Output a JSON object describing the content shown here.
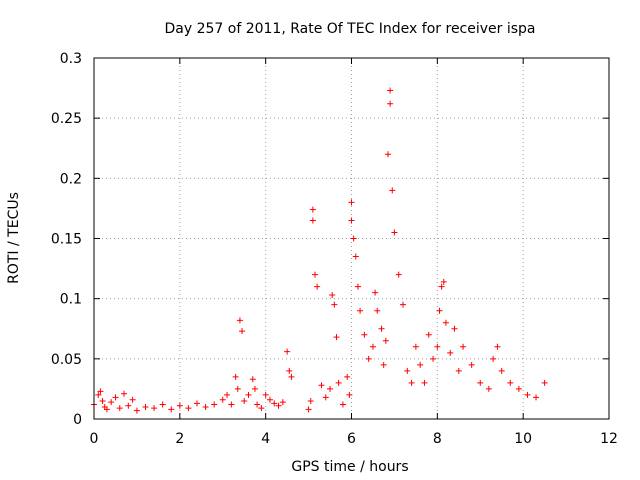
{
  "chart_data": {
    "type": "scatter",
    "title": "Day 257 of 2011, Rate Of TEC Index for receiver ispa",
    "xlabel": "GPS time / hours",
    "ylabel": "ROTI / TECUs",
    "xlim": [
      0,
      12
    ],
    "ylim": [
      0,
      0.3
    ],
    "xticks": [
      0,
      2,
      4,
      6,
      8,
      10,
      12
    ],
    "yticks": [
      0,
      0.05,
      0.1,
      0.15,
      0.2,
      0.25,
      0.3
    ],
    "xtick_labels": [
      "0",
      "2",
      "4",
      "6",
      "8",
      "10",
      "12"
    ],
    "ytick_labels": [
      "0",
      "0.05",
      "0.1",
      "0.15",
      "0.2",
      "0.25",
      "0.3"
    ],
    "grid": true,
    "marker": "plus",
    "color": "#ff0000",
    "series": [
      {
        "x": [
          0.0,
          0.1,
          0.15,
          0.2,
          0.25,
          0.3,
          0.4,
          0.5,
          0.6,
          0.7,
          0.8,
          0.9,
          1.0,
          1.2,
          1.4,
          1.6,
          1.8,
          2.0,
          2.2,
          2.4,
          2.6,
          2.8,
          3.0,
          3.1,
          3.2,
          3.3,
          3.35,
          3.4,
          3.45,
          3.5,
          3.6,
          3.7,
          3.75,
          3.8,
          3.9,
          4.0,
          4.1,
          4.2,
          4.3,
          4.4,
          4.5,
          4.55,
          4.6,
          5.0,
          5.05,
          5.1,
          5.1,
          5.15,
          5.2,
          5.3,
          5.4,
          5.5,
          5.55,
          5.6,
          5.65,
          5.7,
          5.8,
          5.9,
          5.95,
          6.0,
          6.0,
          6.05,
          6.1,
          6.15,
          6.2,
          6.3,
          6.4,
          6.5,
          6.55,
          6.6,
          6.7,
          6.75,
          6.8,
          6.85,
          6.9,
          6.9,
          6.95,
          7.0,
          7.1,
          7.2,
          7.3,
          7.4,
          7.5,
          7.6,
          7.7,
          7.8,
          7.9,
          8.0,
          8.05,
          8.1,
          8.15,
          8.2,
          8.3,
          8.4,
          8.5,
          8.6,
          8.8,
          9.0,
          9.2,
          9.3,
          9.4,
          9.5,
          9.7,
          9.9,
          10.1,
          10.3,
          10.5
        ],
        "y": [
          0.012,
          0.02,
          0.023,
          0.015,
          0.01,
          0.008,
          0.014,
          0.018,
          0.009,
          0.021,
          0.011,
          0.016,
          0.007,
          0.01,
          0.009,
          0.012,
          0.008,
          0.011,
          0.009,
          0.013,
          0.01,
          0.012,
          0.016,
          0.02,
          0.012,
          0.035,
          0.025,
          0.082,
          0.073,
          0.015,
          0.02,
          0.033,
          0.025,
          0.012,
          0.009,
          0.02,
          0.016,
          0.013,
          0.011,
          0.014,
          0.056,
          0.04,
          0.035,
          0.008,
          0.015,
          0.174,
          0.165,
          0.12,
          0.11,
          0.028,
          0.018,
          0.025,
          0.103,
          0.095,
          0.068,
          0.03,
          0.012,
          0.035,
          0.02,
          0.18,
          0.165,
          0.15,
          0.135,
          0.11,
          0.09,
          0.07,
          0.05,
          0.06,
          0.105,
          0.09,
          0.075,
          0.045,
          0.065,
          0.22,
          0.273,
          0.262,
          0.19,
          0.155,
          0.12,
          0.095,
          0.04,
          0.03,
          0.06,
          0.045,
          0.03,
          0.07,
          0.05,
          0.06,
          0.09,
          0.11,
          0.114,
          0.08,
          0.055,
          0.075,
          0.04,
          0.06,
          0.045,
          0.03,
          0.025,
          0.05,
          0.06,
          0.04,
          0.03,
          0.025,
          0.02,
          0.018,
          0.03
        ]
      }
    ]
  }
}
